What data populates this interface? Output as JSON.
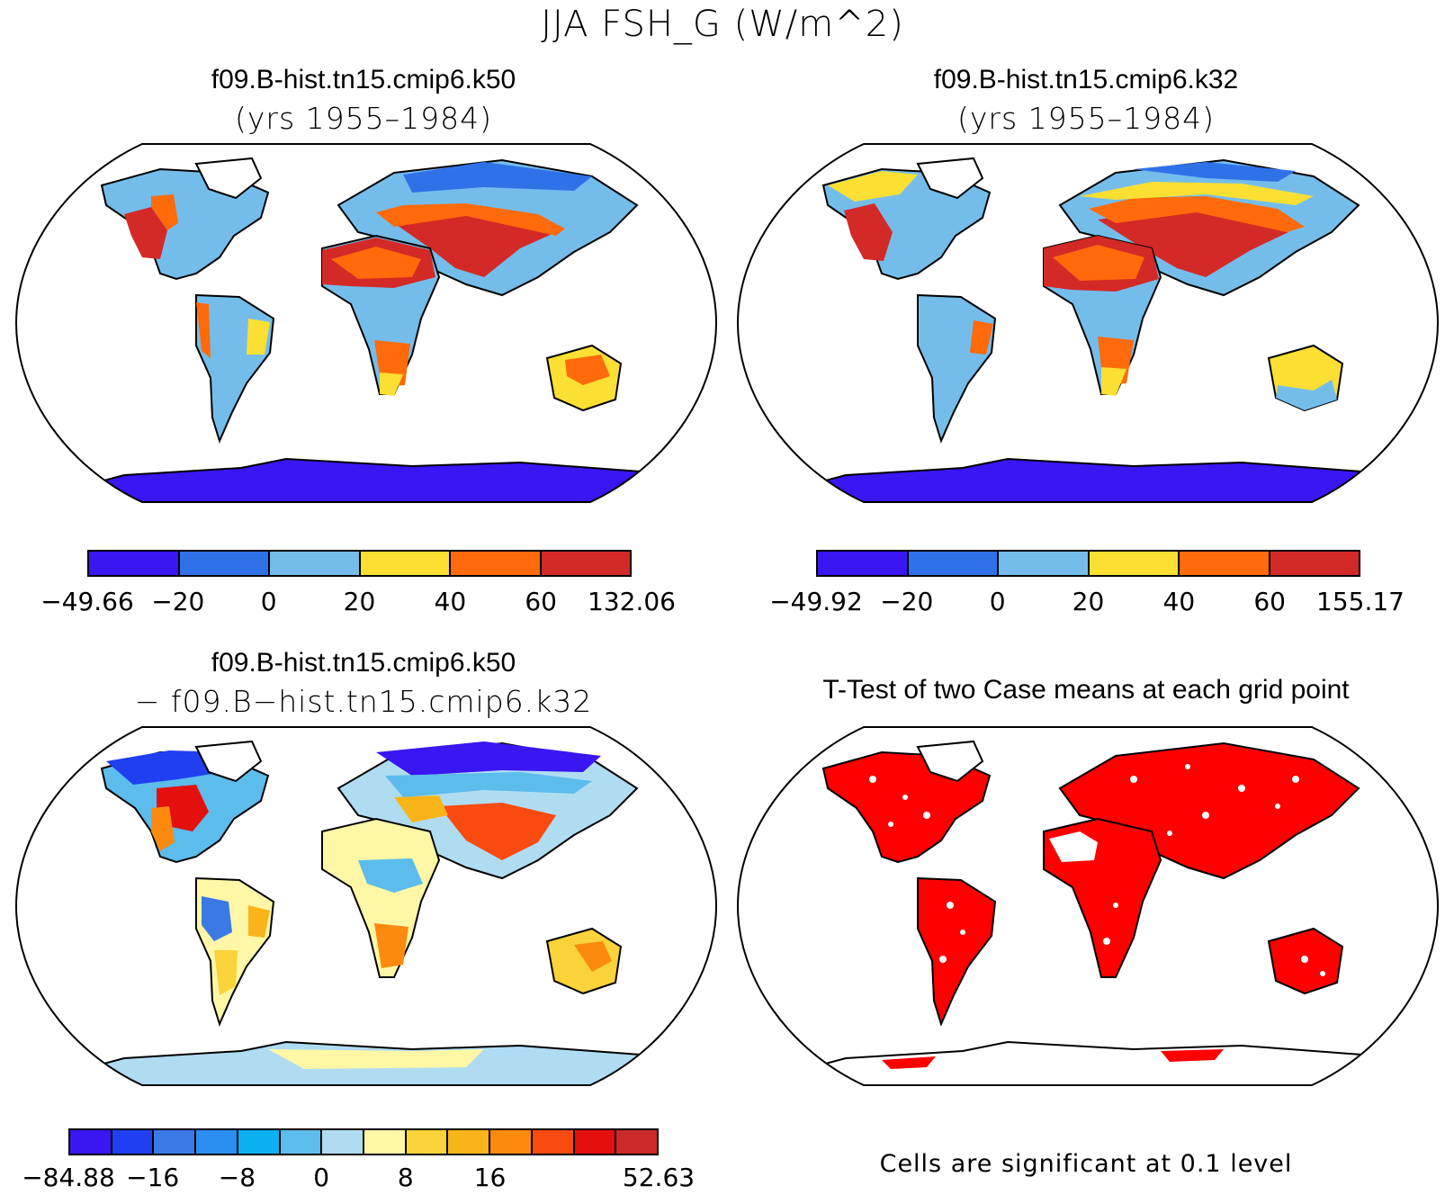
{
  "title": "JJA FSH_G (W/m^2)",
  "panels": [
    {
      "title": "f09.B-hist.tn15.cmip6.k50",
      "subtitle": "(yrs 1955–1984)",
      "colorbar": {
        "colors": [
          "#3a16f2",
          "#2f72e8",
          "#74bdeb",
          "#fbe033",
          "#ff6a0b",
          "#d32a27"
        ],
        "labels": [
          "−49.66",
          "−20",
          "0",
          "20",
          "40",
          "60",
          "132.06"
        ]
      }
    },
    {
      "title": "f09.B-hist.tn15.cmip6.k32",
      "subtitle": "(yrs 1955–1984)",
      "colorbar": {
        "colors": [
          "#3a16f2",
          "#2f72e8",
          "#74bdeb",
          "#fbe033",
          "#ff6a0b",
          "#d32a27"
        ],
        "labels": [
          "−49.92",
          "−20",
          "0",
          "20",
          "40",
          "60",
          "155.17"
        ]
      }
    },
    {
      "title": "f09.B-hist.tn15.cmip6.k50",
      "subtitle": "− f09.B−hist.tn15.cmip6.k32",
      "colorbar": {
        "colors": [
          "#3a16f2",
          "#1f3ff0",
          "#3b79e6",
          "#2a8ff0",
          "#0bb0f0",
          "#5cbcec",
          "#b0dcf2",
          "#fff7a6",
          "#fad23a",
          "#f9b41a",
          "#fb8a0e",
          "#f94a10",
          "#e3100e",
          "#cc2a28"
        ],
        "labels": [
          "−84.88",
          "−16",
          "−8",
          "0",
          "8",
          "16",
          "52.63"
        ]
      }
    },
    {
      "title": "T-Test of two Case means at each grid point",
      "note": "Cells are significant at 0.1 level",
      "sig_color": "#ff0000"
    }
  ]
}
